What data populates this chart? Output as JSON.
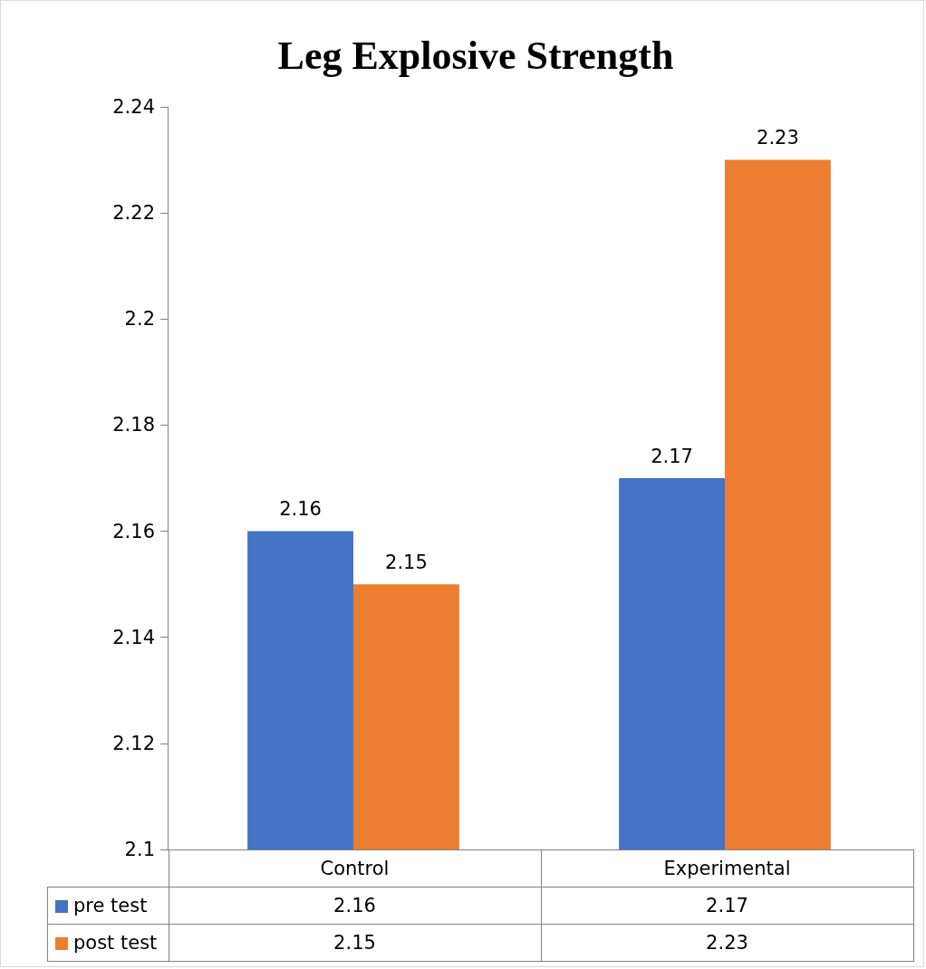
{
  "chart_data": {
    "type": "bar",
    "title": "Leg Explosive Strength",
    "categories": [
      "Control",
      "Experimental"
    ],
    "series": [
      {
        "name": "pre test",
        "color": "#4472c4",
        "values": [
          2.16,
          2.17
        ]
      },
      {
        "name": "post test",
        "color": "#ed7d31",
        "values": [
          2.15,
          2.23
        ]
      }
    ],
    "ylim": [
      2.1,
      2.24
    ],
    "yticks": [
      2.1,
      2.12,
      2.14,
      2.16,
      2.18,
      2.2,
      2.22,
      2.24
    ],
    "grid": false,
    "legend": "bottom",
    "data_labels": true,
    "annotations": [
      "2.16",
      "2.17",
      "2.15",
      "2.23"
    ]
  }
}
